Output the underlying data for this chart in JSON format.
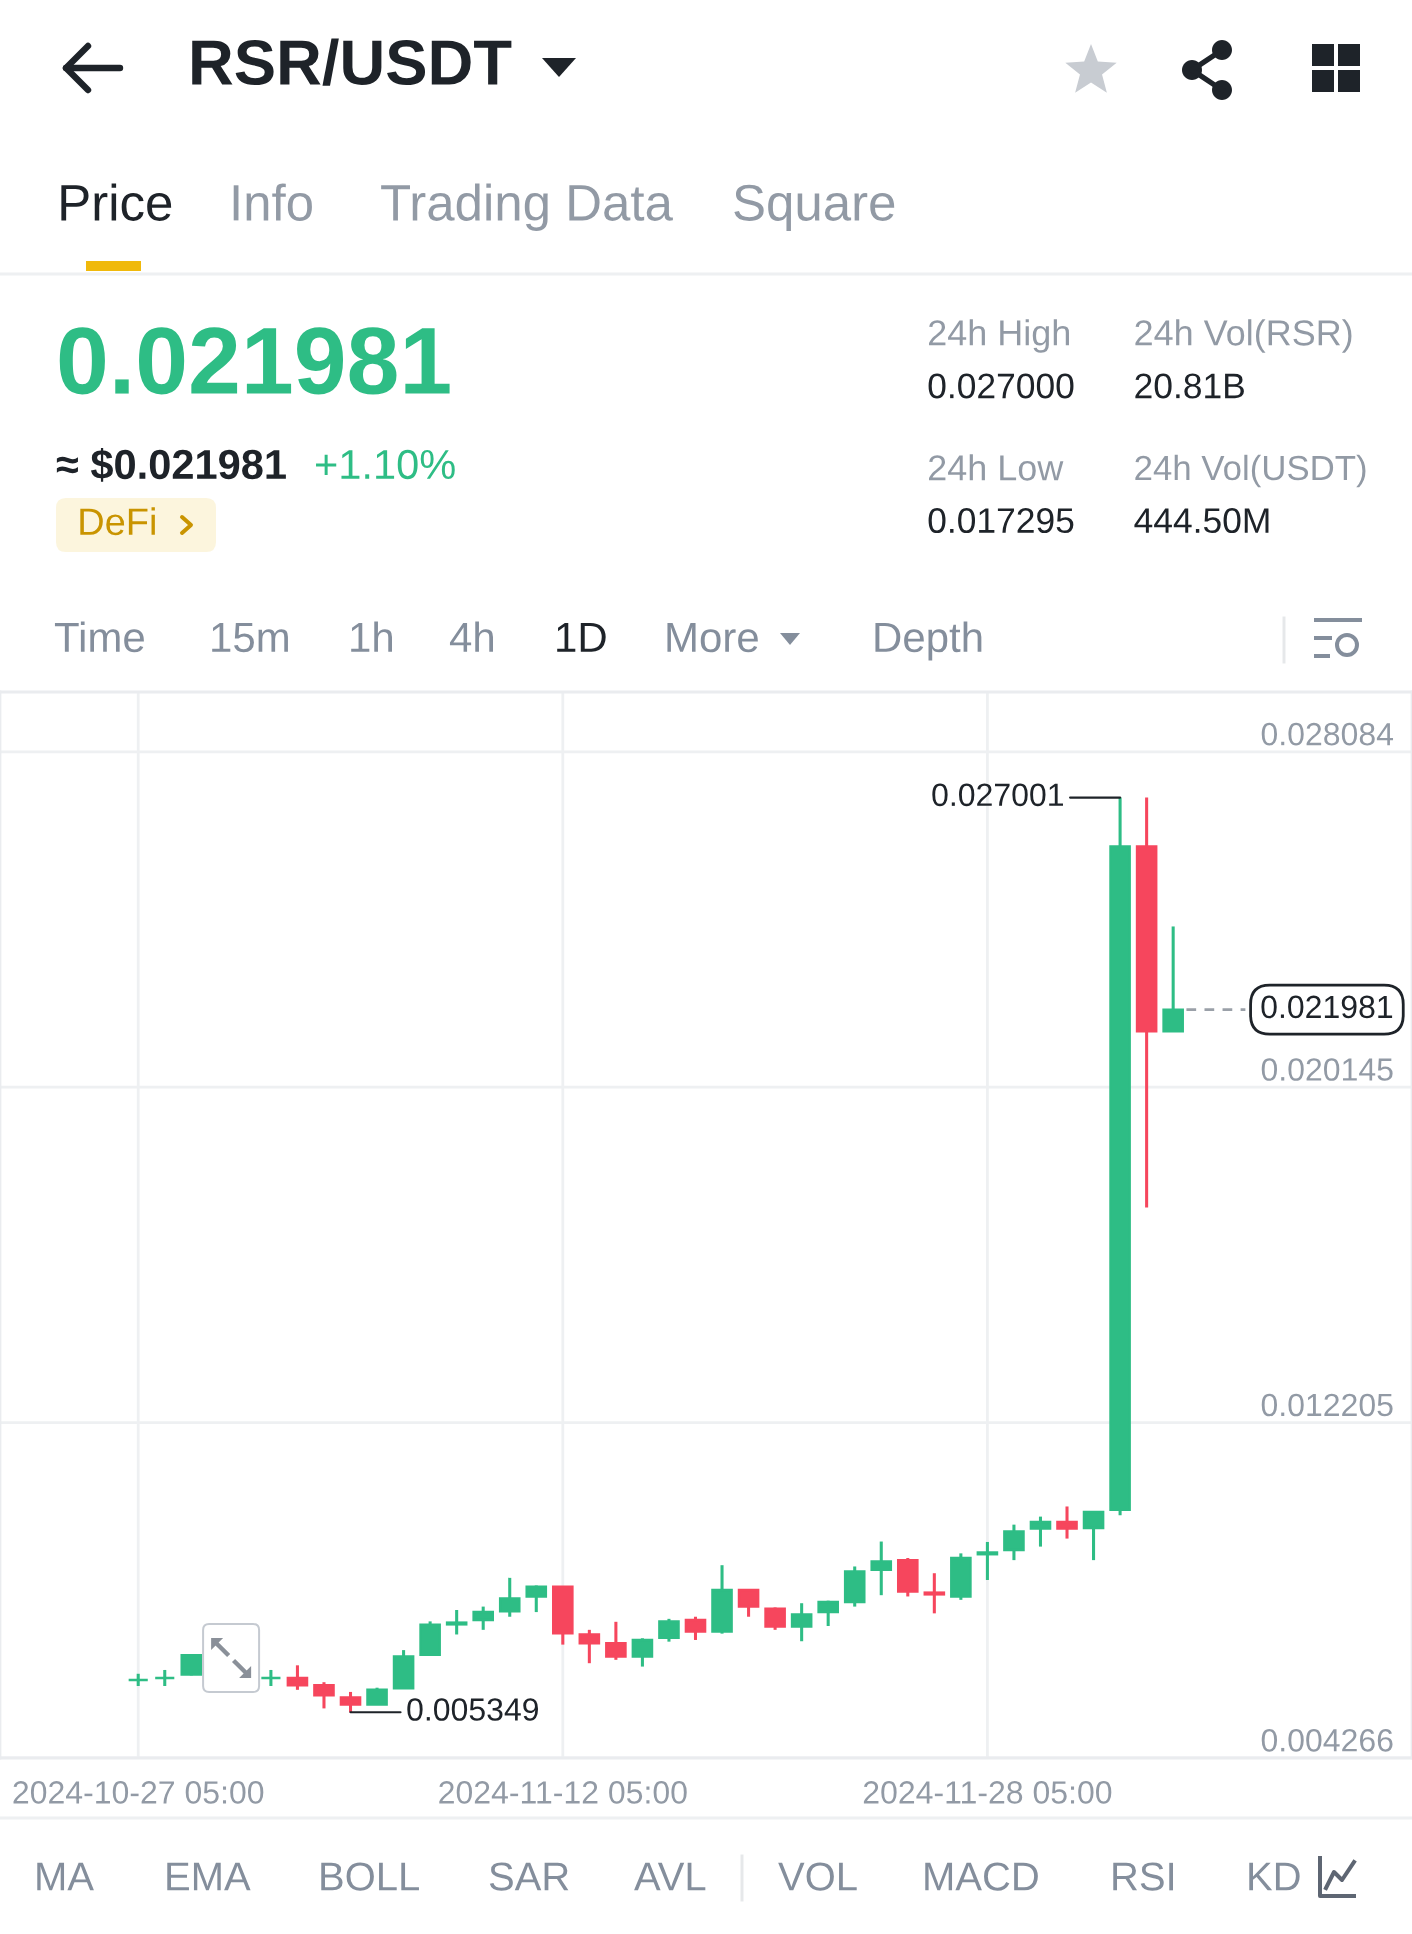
{
  "chart_data": {
    "type": "candlestick",
    "title": "RSR/USDT",
    "x": [
      "2024-10-27T05:00",
      "2024-10-28T05:00",
      "2024-10-29T05:00",
      "2024-11-01T05:00",
      "2024-11-02T05:00",
      "2024-11-03T05:00",
      "2024-11-04T05:00",
      "2024-11-05T05:00",
      "2024-11-06T05:00",
      "2024-11-07T05:00",
      "2024-11-08T05:00",
      "2024-11-09T05:00",
      "2024-11-10T05:00",
      "2024-11-11T05:00",
      "2024-11-12T05:00",
      "2024-11-13T05:00",
      "2024-11-14T05:00",
      "2024-11-15T05:00",
      "2024-11-16T05:00",
      "2024-11-17T05:00",
      "2024-11-18T05:00",
      "2024-11-19T05:00",
      "2024-11-20T05:00",
      "2024-11-21T05:00",
      "2024-11-22T05:00",
      "2024-11-23T05:00",
      "2024-11-24T05:00",
      "2024-11-25T05:00",
      "2024-11-26T05:00",
      "2024-11-27T05:00",
      "2024-11-28T05:00",
      "2024-11-29T05:00",
      "2024-11-30T05:00",
      "2024-12-01T05:00",
      "2024-12-02T05:00",
      "2024-12-03T05:00",
      "2024-12-04T05:00",
      "2024-12-05T05:00"
    ],
    "ohlc": [
      [
        0.00611,
        0.00626,
        0.00597,
        0.00611
      ],
      [
        0.00616,
        0.00635,
        0.00597,
        0.00616
      ],
      [
        0.00624,
        0.00672,
        0.00622,
        0.0067
      ],
      [
        0.00616,
        0.00635,
        0.00597,
        0.00616
      ],
      [
        0.00616,
        0.00646,
        0.00588,
        0.00599
      ],
      [
        0.00599,
        0.00606,
        0.00544,
        0.00575
      ],
      [
        0.0057,
        0.00583,
        0.005349,
        0.00553
      ],
      [
        0.00553,
        0.00593,
        0.00553,
        0.00588
      ],
      [
        0.00592,
        0.00682,
        0.00592,
        0.00667
      ],
      [
        0.00671,
        0.0075,
        0.00671,
        0.00742
      ],
      [
        0.00743,
        0.00777,
        0.00719,
        0.00747
      ],
      [
        0.00753,
        0.00785,
        0.0073,
        0.00772
      ],
      [
        0.00774,
        0.00853,
        0.00761,
        0.00804
      ],
      [
        0.00809,
        0.00835,
        0.00772,
        0.00832
      ],
      [
        0.00832,
        0.00832,
        0.00695,
        0.00722
      ],
      [
        0.00719,
        0.0073,
        0.00651,
        0.00698
      ],
      [
        0.00698,
        0.00749,
        0.00659,
        0.00667
      ],
      [
        0.00667,
        0.0071,
        0.00643,
        0.00706
      ],
      [
        0.00711,
        0.00756,
        0.00702,
        0.0075
      ],
      [
        0.00753,
        0.00761,
        0.00706,
        0.00726
      ],
      [
        0.00726,
        0.00883,
        0.00721,
        0.00824
      ],
      [
        0.00824,
        0.00824,
        0.00761,
        0.00785
      ],
      [
        0.0078,
        0.00783,
        0.0073,
        0.00738
      ],
      [
        0.00738,
        0.00793,
        0.00703,
        0.00766
      ],
      [
        0.00772,
        0.00799,
        0.00739,
        0.00796
      ],
      [
        0.00796,
        0.0088,
        0.00785,
        0.00868
      ],
      [
        0.00872,
        0.00939,
        0.00812,
        0.00892
      ],
      [
        0.00895,
        0.009,
        0.00809,
        0.00821
      ],
      [
        0.00818,
        0.00864,
        0.00769,
        0.00814
      ],
      [
        0.00809,
        0.00911,
        0.00801,
        0.009
      ],
      [
        0.00909,
        0.00938,
        0.00848,
        0.00913
      ],
      [
        0.00919,
        0.00979,
        0.00895,
        0.00963
      ],
      [
        0.0097,
        0.00998,
        0.00927,
        0.00985
      ],
      [
        0.00985,
        0.01022,
        0.00946,
        0.0097
      ],
      [
        0.00971,
        0.0101,
        0.00895,
        0.01009
      ],
      [
        0.01014,
        0.027001,
        0.01001,
        0.02584
      ],
      [
        0.02584,
        0.027,
        0.0173,
        0.02147
      ],
      [
        0.02147,
        0.02395,
        0.02147,
        0.021981
      ]
    ],
    "colors": [
      "#2ebd85",
      "#2ebd85",
      "#2ebd85",
      "#2ebd85",
      "#f6465d",
      "#f6465d",
      "#f6465d",
      "#2ebd85",
      "#2ebd85",
      "#2ebd85",
      "#2ebd85",
      "#2ebd85",
      "#2ebd85",
      "#2ebd85",
      "#f6465d",
      "#f6465d",
      "#f6465d",
      "#2ebd85",
      "#2ebd85",
      "#f6465d",
      "#2ebd85",
      "#f6465d",
      "#f6465d",
      "#2ebd85",
      "#2ebd85",
      "#2ebd85",
      "#2ebd85",
      "#f6465d",
      "#f6465d",
      "#2ebd85",
      "#2ebd85",
      "#2ebd85",
      "#2ebd85",
      "#f6465d",
      "#2ebd85",
      "#2ebd85",
      "#f6465d",
      "#2ebd85"
    ],
    "xlim": [
      "2024-10-22T00:00",
      "2024-12-14T05:00"
    ],
    "xticks": [
      {
        "value": "2024-10-27T05:00",
        "label": "2024-10-27 05:00"
      },
      {
        "value": "2024-11-12T05:00",
        "label": "2024-11-12 05:00"
      },
      {
        "value": "2024-11-28T05:00",
        "label": "2024-11-28 05:00"
      }
    ],
    "ylim": [
      0.004266,
      0.0295
    ],
    "yticks": [
      0.004266,
      0.012205,
      0.020145,
      0.028084
    ],
    "grid": true,
    "ref_lines": [
      {
        "axis": "y",
        "value": 0.021981,
        "label": "0.021981",
        "line_style": "dashed",
        "color": "#9aa0a8"
      }
    ],
    "annotations": [
      {
        "text": "0.027001",
        "x": "2024-12-03T05:00",
        "y": 0.027001
      },
      {
        "text": "0.005349",
        "x": "2024-11-04T05:00",
        "y": 0.005349
      },
      "Price",
      "Info",
      "Trading Data",
      "Square",
      "0.021981",
      "≈ $0.021981",
      "+1.10%",
      "DeFi",
      "24h High",
      "0.027000",
      "24h Vol(RSR)",
      "20.81B",
      "24h Low",
      "0.017295",
      "24h Vol(USDT)",
      "444.50M",
      "Time",
      "15m",
      "1h",
      "4h",
      "1D",
      "More",
      "Depth",
      "MA",
      "EMA",
      "BOLL",
      "SAR",
      "AVL",
      "VOL",
      "MACD",
      "RSI",
      "KD"
    ]
  }
}
